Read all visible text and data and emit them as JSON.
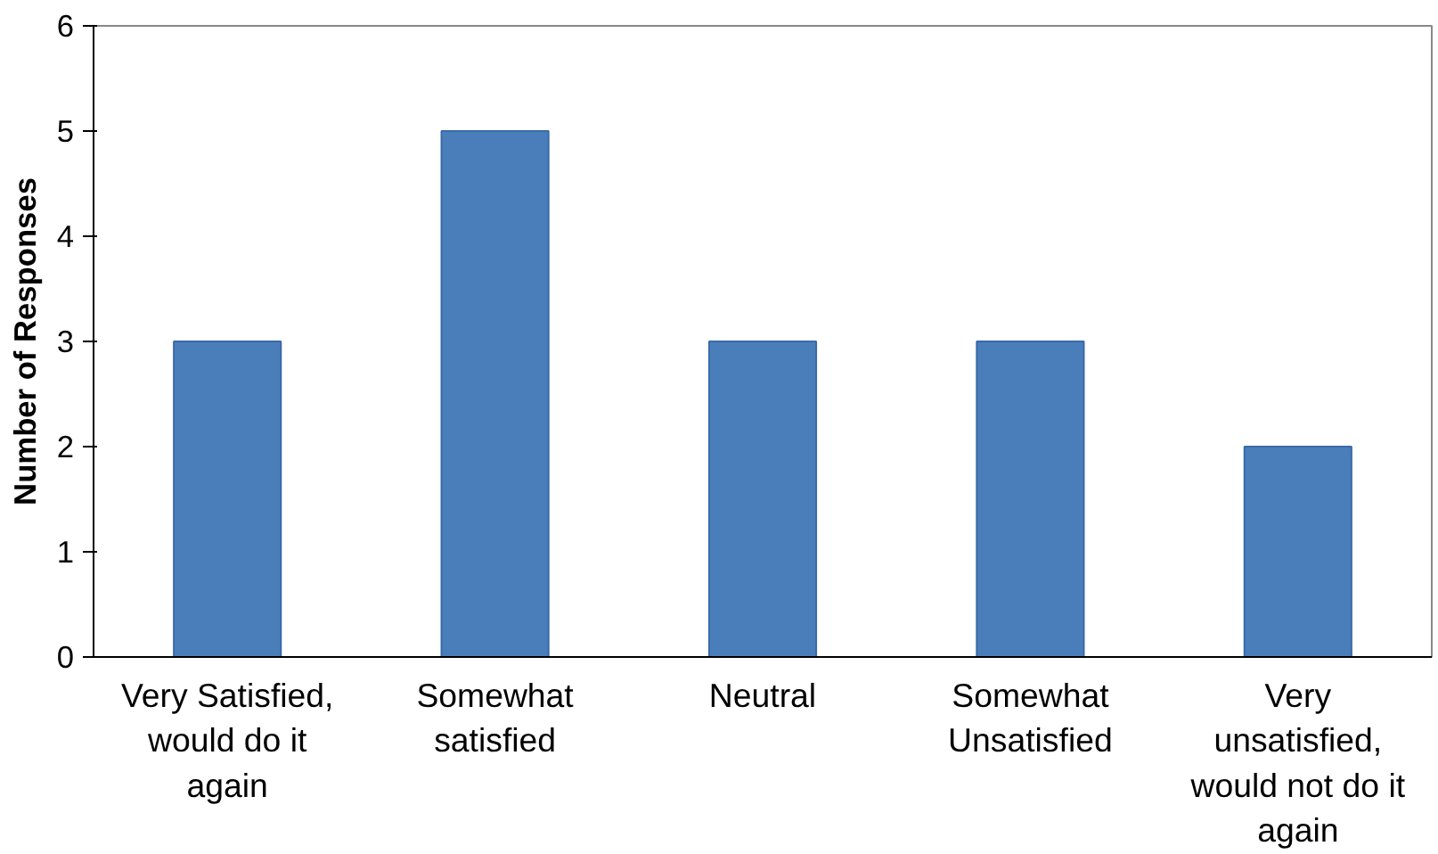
{
  "chart_data": {
    "type": "bar",
    "ylabel": "Number of Responses",
    "categories": [
      "Very Satisfied, would do it again",
      "Somewhat satisfied",
      "Neutral",
      "Somewhat Unsatisfied",
      "Very unsatisfied, would not do it again"
    ],
    "values": [
      3,
      5,
      3,
      3,
      2
    ],
    "color": "#4a7ebb",
    "ylim": [
      0,
      6
    ],
    "yticks": [
      0,
      1,
      2,
      3,
      4,
      5,
      6
    ],
    "grid": false
  }
}
